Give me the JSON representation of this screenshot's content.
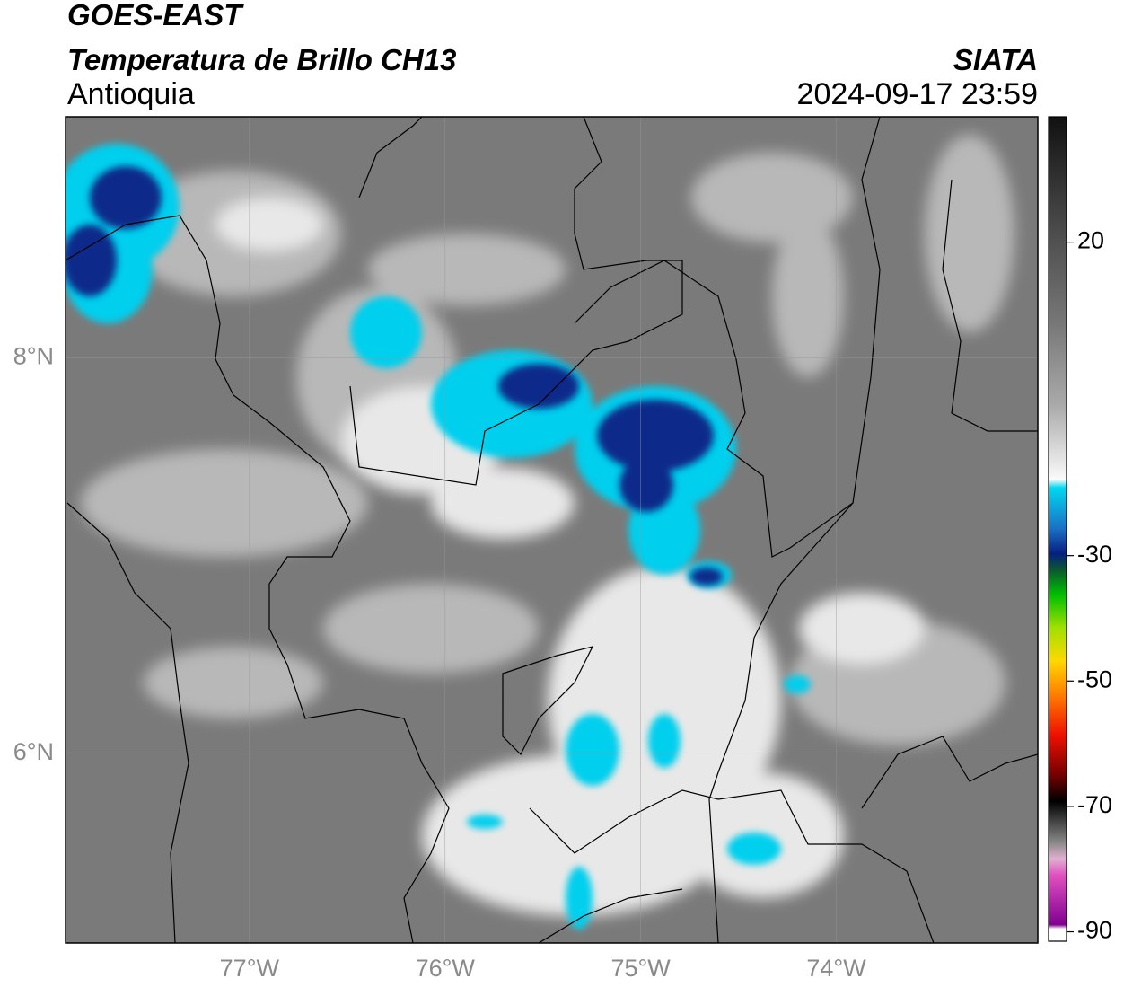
{
  "header": {
    "title": "GOES-EAST",
    "subtitle": "Temperatura de Brillo CH13",
    "region": "Antioquia",
    "source": "SIATA",
    "datetime": "2024-09-17 23:59"
  },
  "map": {
    "lon_lim": [
      -77.94,
      -72.97
    ],
    "lat_lim": [
      5.04,
      9.22
    ],
    "lon_ticks": [
      {
        "value": -77,
        "label": "77°W"
      },
      {
        "value": -76,
        "label": "76°W"
      },
      {
        "value": -75,
        "label": "75°W"
      },
      {
        "value": -74,
        "label": "74°W"
      }
    ],
    "lat_ticks": [
      {
        "value": 8,
        "label": "8°N"
      },
      {
        "value": 6,
        "label": "6°N"
      }
    ]
  },
  "colorbar": {
    "lim": [
      -91.5,
      40
    ],
    "ticks": [
      20,
      -30,
      -50,
      -70,
      -90
    ]
  }
}
